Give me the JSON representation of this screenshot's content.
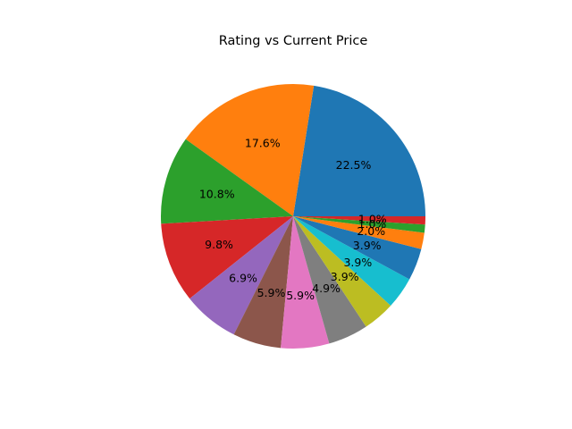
{
  "chart_data": {
    "type": "pie",
    "title": "Rating vs Current Price",
    "values": [
      22.5,
      17.6,
      10.8,
      9.8,
      6.9,
      5.9,
      5.9,
      4.9,
      3.9,
      3.9,
      3.9,
      2.0,
      1.0,
      1.0
    ],
    "labels": [
      "22.5%",
      "17.6%",
      "10.8%",
      "9.8%",
      "6.9%",
      "5.9%",
      "5.9%",
      "4.9%",
      "3.9%",
      "3.9%",
      "3.9%",
      "2.0%",
      "1.0%",
      "1.0%"
    ],
    "colors": [
      "#1f77b4",
      "#ff7f0e",
      "#2ca02c",
      "#d62728",
      "#9467bd",
      "#8c564b",
      "#e377c2",
      "#7f7f7f",
      "#bcbd22",
      "#17becf",
      "#1f77b4",
      "#ff7f0e",
      "#2ca02c",
      "#d62728"
    ],
    "start_angle_deg": 0,
    "direction": "counterclockwise",
    "legend": "none"
  }
}
